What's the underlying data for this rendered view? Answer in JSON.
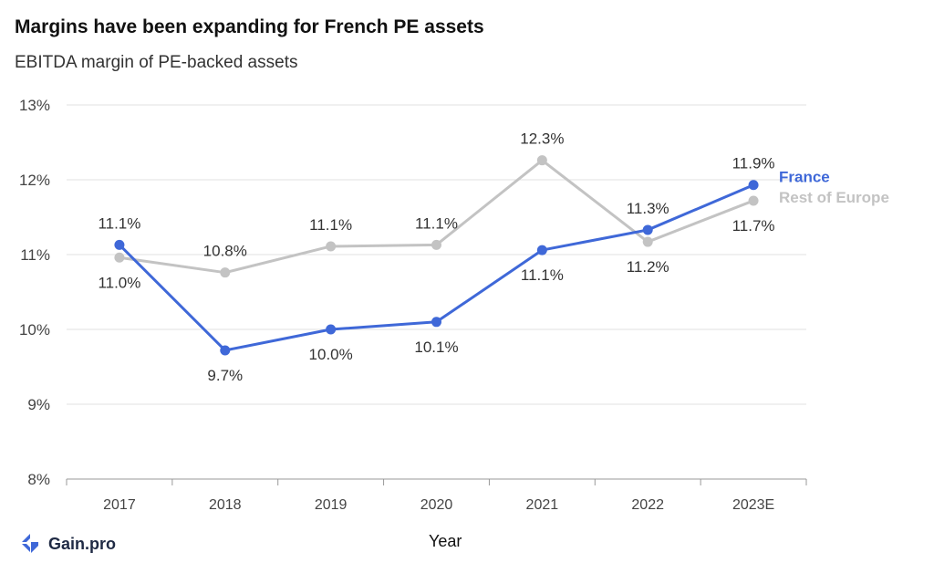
{
  "title": "Margins have been expanding for French PE assets",
  "subtitle": "EBITDA margin of PE-backed assets",
  "logo_text": "Gain.pro",
  "colors": {
    "france": "#3f68d8",
    "rest_of_europe": "#c3c3c3",
    "grid": "#e2e2e2",
    "axis": "#999999"
  },
  "chart_data": {
    "type": "line",
    "title": "Margins have been expanding for French PE assets",
    "subtitle": "EBITDA margin of PE-backed assets",
    "xlabel": "Year",
    "ylabel": "",
    "categories": [
      "2017",
      "2018",
      "2019",
      "2020",
      "2021",
      "2022",
      "2023E"
    ],
    "ylim": [
      8,
      13
    ],
    "yticks": [
      8,
      9,
      10,
      11,
      12,
      13
    ],
    "ytick_labels": [
      "8%",
      "9%",
      "10%",
      "11%",
      "12%",
      "13%"
    ],
    "grid": true,
    "legend": "inline labels at line ends",
    "series": [
      {
        "name": "France",
        "values": [
          11.13,
          9.72,
          10.0,
          10.1,
          11.06,
          11.33,
          11.93
        ],
        "labels": [
          "11.1%",
          "9.7%",
          "10.0%",
          "10.1%",
          "11.1%",
          "11.3%",
          "11.9%"
        ],
        "label_pos": [
          "above",
          "below",
          "below",
          "below",
          "below",
          "above",
          "above"
        ]
      },
      {
        "name": "Rest of Europe",
        "values": [
          10.96,
          10.76,
          11.11,
          11.13,
          12.26,
          11.17,
          11.72
        ],
        "labels": [
          "11.0%",
          "10.8%",
          "11.1%",
          "11.1%",
          "12.3%",
          "11.2%",
          "11.7%"
        ],
        "label_pos": [
          "below",
          "above",
          "above",
          "above",
          "above",
          "below",
          "below"
        ]
      }
    ]
  }
}
